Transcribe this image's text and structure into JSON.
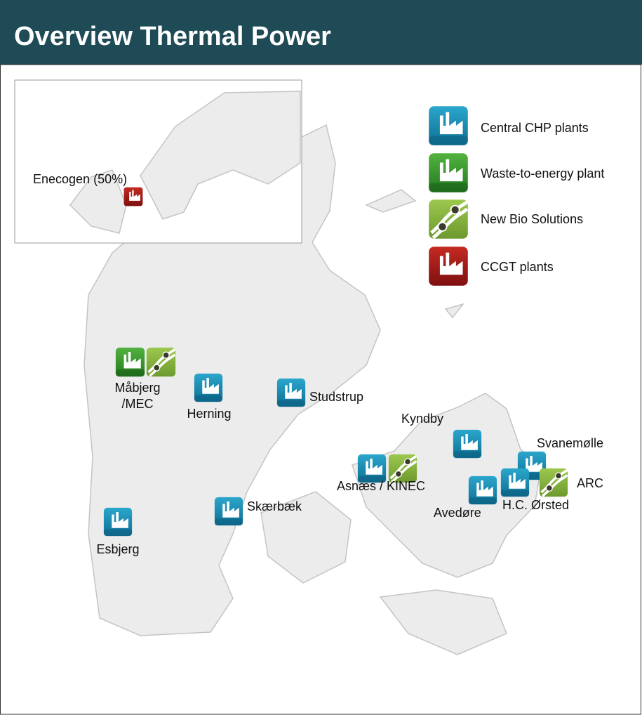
{
  "header": {
    "title": "Overview Thermal Power"
  },
  "inset": {
    "label": "Enecogen (50%)"
  },
  "legend": [
    "Central CHP plants",
    "Waste-to-energy plant",
    "New Bio Solutions",
    "CCGT plants"
  ],
  "sites": [
    "Måbjerg",
    "/MEC",
    "Herning",
    "Studstrup",
    "Kyndby",
    "Asnæs / KINEC",
    "Svanemølle",
    "H.C. Ørsted",
    "Avedøre",
    "ARC",
    "Skærbæk",
    "Esbjerg"
  ]
}
